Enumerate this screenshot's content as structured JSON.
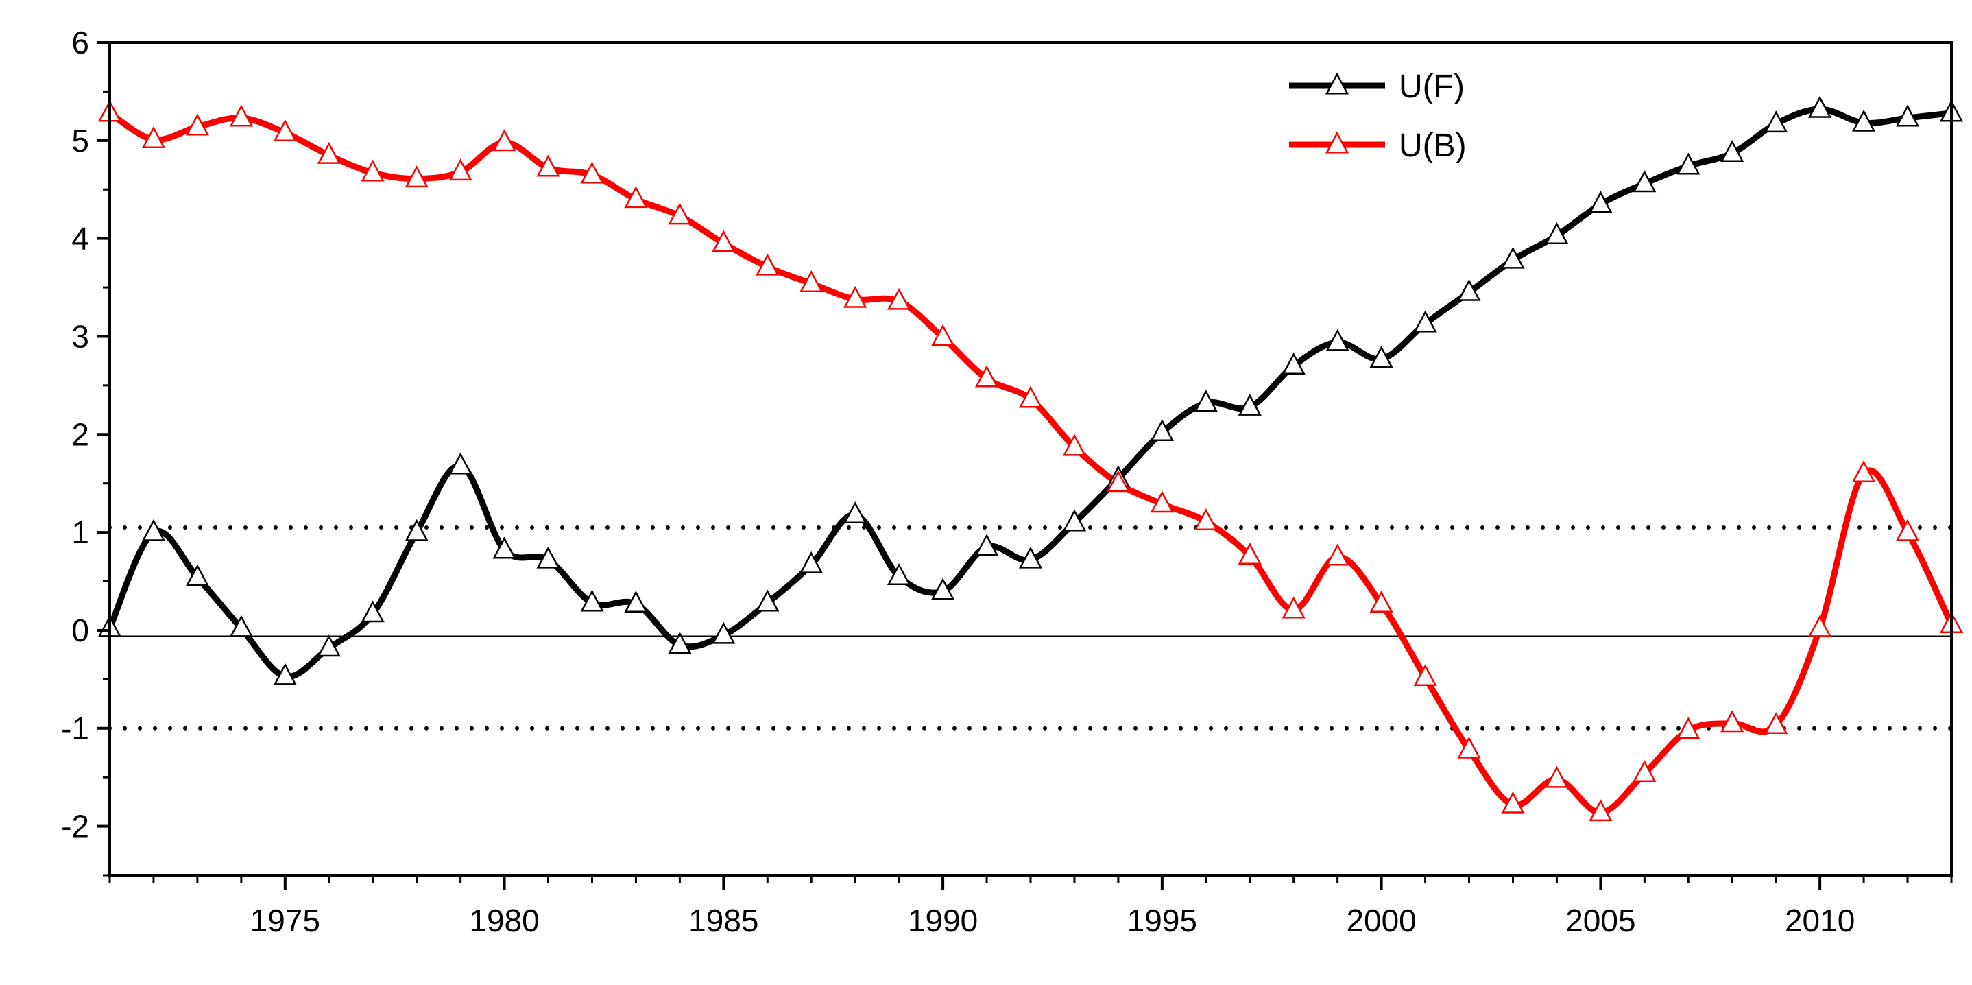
{
  "chart_data": {
    "type": "line",
    "title": "",
    "xlabel": "",
    "ylabel": "",
    "xlim": [
      1971,
      2013
    ],
    "ylim": [
      -2.5,
      6
    ],
    "x_ticks": [
      1975,
      1980,
      1985,
      1990,
      1995,
      2000,
      2005,
      2010
    ],
    "x_tick_labels": [
      "1975",
      "1980",
      "1985",
      "1990",
      "1995",
      "2000",
      "2005",
      "2010"
    ],
    "y_ticks": [
      -2,
      -1,
      0,
      1,
      2,
      3,
      4,
      5,
      6
    ],
    "y_tick_labels": [
      "-2",
      "-1",
      "0",
      "1",
      "2",
      "3",
      "4",
      "5",
      "6"
    ],
    "grid": false,
    "legend_position": "top-right",
    "reference_lines": [
      {
        "name": "upper-significance-line",
        "y": 1.05,
        "style": "dotted"
      },
      {
        "name": "lower-significance-line",
        "y": -1.0,
        "style": "dotted"
      },
      {
        "name": "zero-line",
        "y": -0.06,
        "style": "solid"
      }
    ],
    "x": [
      1971,
      1972,
      1973,
      1974,
      1975,
      1976,
      1977,
      1978,
      1979,
      1980,
      1981,
      1982,
      1983,
      1984,
      1985,
      1986,
      1987,
      1988,
      1989,
      1990,
      1991,
      1992,
      1993,
      1994,
      1995,
      1996,
      1997,
      1998,
      1999,
      2000,
      2001,
      2002,
      2003,
      2004,
      2005,
      2006,
      2007,
      2008,
      2009,
      2010,
      2011,
      2012,
      2013
    ],
    "series": [
      {
        "name": "U(F)",
        "color": "#000000",
        "marker": "triangle",
        "values": [
          0.02,
          1.0,
          0.54,
          0.02,
          -0.47,
          -0.18,
          0.17,
          1.0,
          1.68,
          0.82,
          0.72,
          0.28,
          0.27,
          -0.15,
          -0.05,
          0.28,
          0.67,
          1.18,
          0.55,
          0.4,
          0.85,
          0.72,
          1.1,
          1.55,
          2.02,
          2.32,
          2.28,
          2.7,
          2.94,
          2.77,
          3.13,
          3.45,
          3.78,
          4.03,
          4.35,
          4.56,
          4.74,
          4.87,
          5.17,
          5.32,
          5.18,
          5.23,
          5.28
        ]
      },
      {
        "name": "U(B)",
        "color": "#ff0000",
        "marker": "triangle",
        "values": [
          5.28,
          5.01,
          5.14,
          5.23,
          5.08,
          4.85,
          4.67,
          4.61,
          4.68,
          4.98,
          4.72,
          4.65,
          4.4,
          4.23,
          3.95,
          3.71,
          3.54,
          3.38,
          3.36,
          2.99,
          2.57,
          2.36,
          1.87,
          1.5,
          1.29,
          1.11,
          0.76,
          0.21,
          0.75,
          0.27,
          -0.48,
          -1.22,
          -1.78,
          -1.52,
          -1.86,
          -1.46,
          -1.02,
          -0.95,
          -0.97,
          0.02,
          1.6,
          1.0,
          0.06
        ]
      }
    ]
  }
}
